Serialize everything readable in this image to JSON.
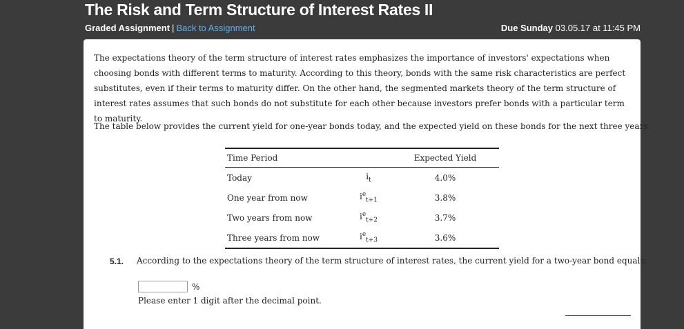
{
  "header": {
    "title": "The Risk and Term Structure of Interest Rates II",
    "assignment_type": "Graded Assignment",
    "separator": "|",
    "back_link": "Back to Assignment",
    "due_label": "Due Sunday",
    "due_value": "03.05.17 at 11:45 PM"
  },
  "content": {
    "intro_paragraph": "The expectations theory of the term structure of interest rates emphasizes the importance of investors' expectations when choosing bonds with different terms to maturity. According to this theory, bonds with the same risk characteristics are perfect substitutes, even if their terms to maturity differ. On the other hand, the segmented markets theory of the term structure of interest rates assumes that such bonds do not substitute for each other because investors prefer bonds with a particular term to maturity.",
    "table_intro": "The table below provides the current yield for one-year bonds today, and the expected yield on these bonds for the next three years."
  },
  "table": {
    "headers": [
      "Time Period",
      "",
      "Expected Yield"
    ],
    "rows": [
      {
        "period": "Today",
        "sym_base": "i",
        "sym_sup": "",
        "sym_sub": "t",
        "value": "4.0%"
      },
      {
        "period": "One year from now",
        "sym_base": "i",
        "sym_sup": "e",
        "sym_sub": "t+1",
        "value": "3.8%"
      },
      {
        "period": "Two years from now",
        "sym_base": "i",
        "sym_sup": "e",
        "sym_sub": "t+2",
        "value": "3.7%"
      },
      {
        "period": "Three years from now",
        "sym_base": "i",
        "sym_sup": "e",
        "sym_sub": "t+3",
        "value": "3.6%"
      }
    ]
  },
  "question": {
    "number": "5.1.",
    "text": "According to the expectations theory of the term structure of interest rates, the current yield for a two-year bond equals:",
    "answer_value": "",
    "unit": "%",
    "hint": "Please enter 1 digit after the decimal point."
  }
}
